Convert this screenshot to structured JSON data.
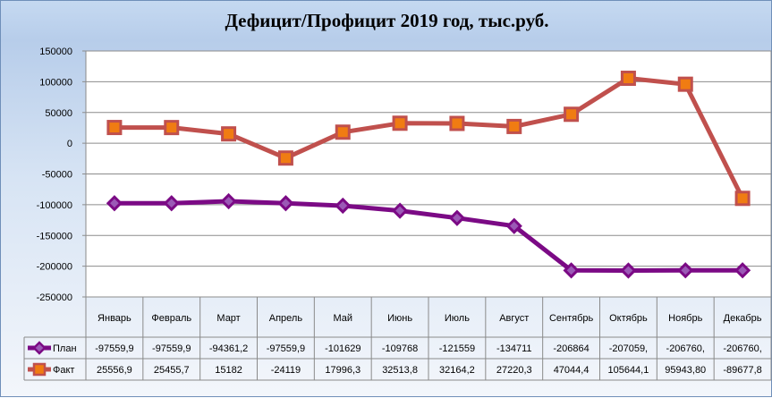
{
  "chart_data": {
    "type": "line",
    "title": "Дефицит/Профицит 2019 год, тыс.руб.",
    "categories": [
      "Январь",
      "Февраль",
      "Март",
      "Апрель",
      "Май",
      "Июнь",
      "Июль",
      "Август",
      "Сентябрь",
      "Октябрь",
      "Ноябрь",
      "Декабрь"
    ],
    "ylim": [
      -250000,
      150000
    ],
    "yticks": [
      150000,
      100000,
      50000,
      0,
      -50000,
      -100000,
      -150000,
      -200000,
      -250000
    ],
    "grid": true,
    "legend": "data-table",
    "series": [
      {
        "name": "План",
        "color": "#7b0a85",
        "marker": "diamond",
        "values": [
          -97559.9,
          -97559.9,
          -94361.2,
          -97559.9,
          -101629,
          -109768,
          -121559,
          -134711,
          -206864,
          -207059,
          -206760,
          -206760
        ],
        "labels": [
          "-97559,9",
          "-97559,9",
          "-94361,2",
          "-97559,9",
          "-101629",
          "-109768",
          "-121559",
          "-134711",
          "-206864",
          "-207059,",
          "-206760,",
          "-206760,"
        ]
      },
      {
        "name": "Факт",
        "color": "#c0504d",
        "marker_color": "#f07c12",
        "marker": "square",
        "values": [
          25556.9,
          25455.7,
          15182,
          -24119,
          17996.3,
          32513.8,
          32164.2,
          27220.3,
          47044.4,
          105644.1,
          95943.8,
          -89677.8
        ],
        "labels": [
          "25556,9",
          "25455,7",
          "15182",
          "-24119",
          "17996,3",
          "32513,8",
          "32164,2",
          "27220,3",
          "47044,4",
          "105644,1",
          "95943,80",
          "-89677,8"
        ]
      }
    ]
  }
}
